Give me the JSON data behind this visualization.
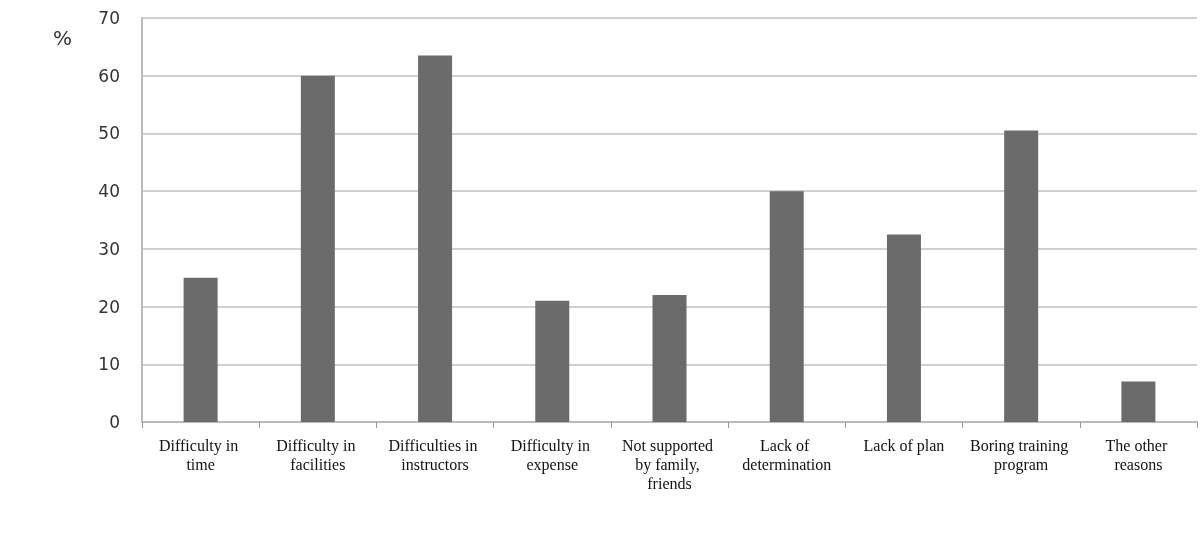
{
  "chart_data": {
    "type": "bar",
    "ylabel": "%",
    "categories": [
      "Difficulty in time",
      "Difficulty in facilities",
      "Difficulties in instructors",
      "Difficulty in expense",
      "Not supported by family, friends",
      "Lack of determination",
      "Lack of plan",
      "Boring training program",
      "The other reasons"
    ],
    "values": [
      25,
      60,
      63.5,
      21,
      22,
      40,
      32.5,
      50.5,
      7
    ],
    "color": "#6b6b6b",
    "ylim": [
      0,
      70
    ],
    "yticks": [
      0,
      10,
      20,
      30,
      40,
      50,
      60,
      70
    ],
    "grid": "y"
  }
}
